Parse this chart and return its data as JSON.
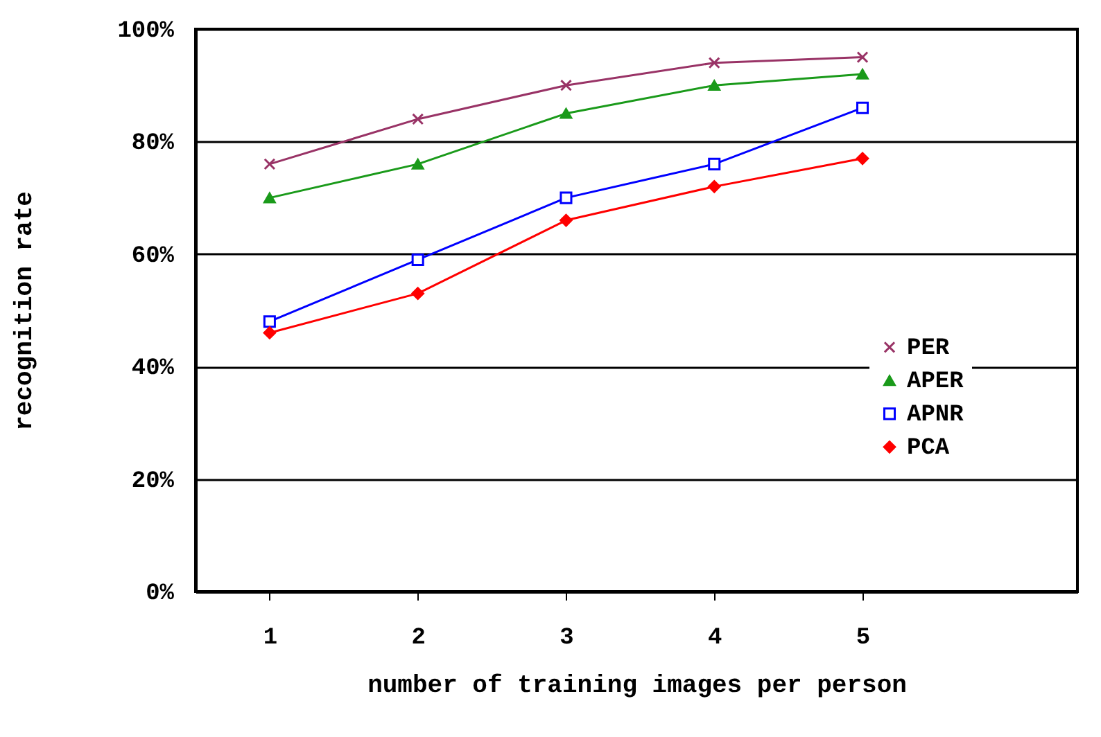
{
  "chart_data": {
    "type": "line",
    "xlabel": "number of training images per person",
    "ylabel": "recognition rate",
    "categories": [
      "1",
      "2",
      "3",
      "4",
      "5"
    ],
    "series": [
      {
        "name": "PER",
        "color": "#993366",
        "marker": "cross",
        "values": [
          76,
          84,
          90,
          94,
          95
        ]
      },
      {
        "name": "APER",
        "color": "#1a9a1a",
        "marker": "triangle",
        "values": [
          70,
          76,
          85,
          90,
          92
        ]
      },
      {
        "name": "APNR",
        "color": "#0000ff",
        "marker": "square",
        "values": [
          48,
          59,
          70,
          76,
          86
        ]
      },
      {
        "name": "PCA",
        "color": "#ff0000",
        "marker": "diamond",
        "values": [
          46,
          53,
          66,
          72,
          77
        ]
      }
    ],
    "ylim": [
      0,
      100
    ],
    "yticks": [
      {
        "value": 0,
        "label": "0%"
      },
      {
        "value": 20,
        "label": "20%"
      },
      {
        "value": 40,
        "label": "40%"
      },
      {
        "value": 60,
        "label": "60%"
      },
      {
        "value": 80,
        "label": "80%"
      },
      {
        "value": 100,
        "label": "100%"
      }
    ],
    "grid": "y",
    "legend": "right"
  }
}
